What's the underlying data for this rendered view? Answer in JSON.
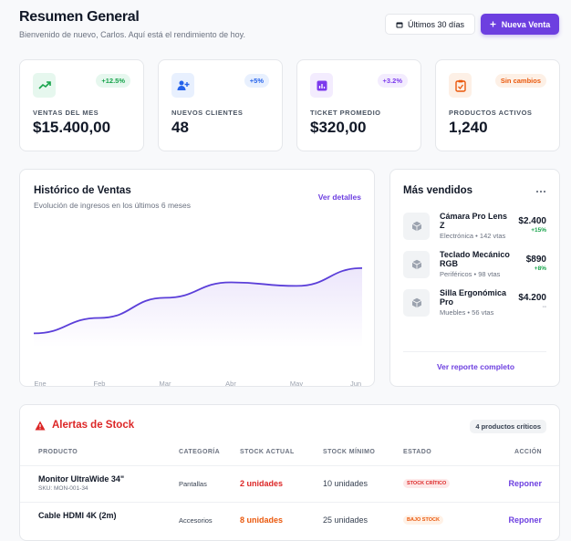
{
  "header": {
    "title": "Resumen General",
    "subtitle": "Bienvenido de nuevo, Carlos. Aquí está el rendimiento de hoy.",
    "date_range": "Últimos 30 días",
    "new_sale": "Nueva Venta"
  },
  "kpis": [
    {
      "label": "VENTAS DEL MES",
      "value": "$15.400,00",
      "change": "+12.5%"
    },
    {
      "label": "NUEVOS CLIENTES",
      "value": "48",
      "change": "+5%"
    },
    {
      "label": "TICKET PROMEDIO",
      "value": "$320,00",
      "change": "+3.2%"
    },
    {
      "label": "PRODUCTOS ACTIVOS",
      "value": "1,240",
      "change": "Sin cambios"
    }
  ],
  "sales_chart": {
    "type": "line",
    "title": "Histórico de Ventas",
    "subtitle": "Evolución de ingresos en los últimos 6 meses",
    "link": "Ver detalles",
    "categories": [
      "Ene",
      "Feb",
      "Mar",
      "Abr",
      "May",
      "Jun"
    ],
    "values": [
      12,
      25,
      42,
      55,
      52,
      67
    ],
    "ylim": [
      0,
      100
    ],
    "color": "#5b3fd9"
  },
  "top_sellers": {
    "title": "Más vendidos",
    "items": [
      {
        "name": "Cámara Pro Lens Z",
        "meta": "Electrónica • 142 vtas",
        "price": "$2.400",
        "change": "+15%"
      },
      {
        "name": "Teclado Mecánico RGB",
        "meta": "Periféricos • 98 vtas",
        "price": "$890",
        "change": "+8%"
      },
      {
        "name": "Silla Ergonómica Pro",
        "meta": "Muebles • 56 vtas",
        "price": "$4.200",
        "change": "--"
      }
    ],
    "link": "Ver reporte completo"
  },
  "stock_alerts": {
    "title": "Alertas de Stock",
    "badge": "4 productos críticos",
    "columns": [
      "PRODUCTO",
      "CATEGORÍA",
      "STOCK ACTUAL",
      "STOCK MÍNIMO",
      "ESTADO",
      "ACCIÓN"
    ],
    "rows": [
      {
        "name": "Monitor UltraWide 34\"",
        "sku": "SKU: MON-001-34",
        "category": "Pantallas",
        "stock": "2 unidades",
        "minimum": "10 unidades",
        "status": "STOCK CRÍTICO",
        "action": "Reponer"
      },
      {
        "name": "Cable HDMI 4K (2m)",
        "category": "Accesorios",
        "stock": "8 unidades",
        "minimum": "25 unidades",
        "status": "BAJO STOCK",
        "action": "Reponer"
      }
    ]
  }
}
